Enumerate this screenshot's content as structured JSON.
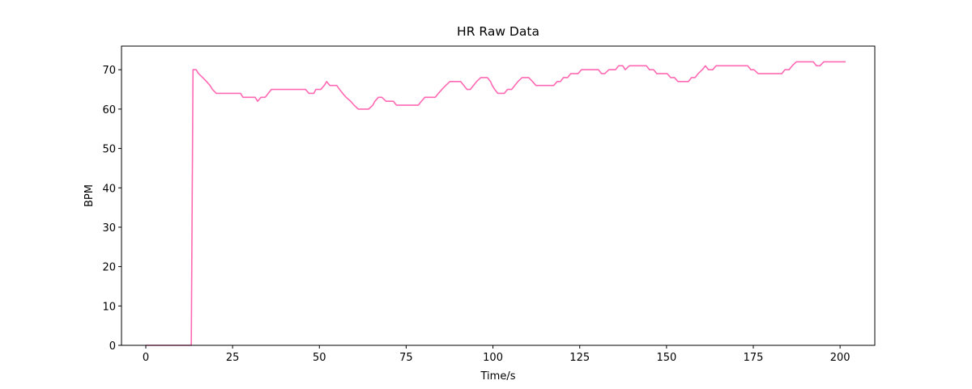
{
  "chart_data": {
    "type": "line",
    "title": "HR Raw Data",
    "x_label": "Time/s",
    "y_label": "BPM",
    "color": "#ff69b4",
    "xlim": [
      -7,
      210
    ],
    "xticks": [
      0,
      25,
      50,
      75,
      100,
      125,
      150,
      175,
      200
    ],
    "ylim": [
      0,
      76
    ],
    "yticks": [
      0,
      10,
      20,
      30,
      40,
      50,
      60,
      70
    ],
    "x": [
      0,
      13.1,
      13.6,
      14.5,
      15.2,
      16.4,
      17.5,
      18.5,
      19.2,
      20.3,
      27.3,
      28,
      31.5,
      32.2,
      33.2,
      34.4,
      35.3,
      36.2,
      46,
      47,
      48.4,
      49,
      50.4,
      51.4,
      52.1,
      53,
      55,
      55.8,
      56.7,
      57.7,
      59,
      60,
      61.2,
      64.2,
      65.4,
      66,
      67,
      68,
      69.2,
      71.3,
      72.2,
      78.5,
      79.4,
      80.4,
      83.4,
      84.3,
      85.3,
      86.4,
      87.6,
      90.7,
      91.6,
      92.5,
      93.5,
      94.4,
      95.3,
      96.5,
      98.4,
      99.3,
      99.8,
      100.5,
      101.4,
      103.3,
      104.2,
      105.4,
      106.3,
      107.2,
      108.4,
      110.3,
      111.4,
      112.4,
      117.5,
      118.5,
      119.4,
      120.3,
      121.5,
      122.4,
      124.5,
      125.5,
      130.4,
      131.3,
      132.2,
      133.4,
      135.3,
      136.2,
      137.4,
      138.1,
      139.3,
      144.2,
      145.1,
      146.3,
      147.2,
      150.2,
      151.2,
      152.3,
      153.3,
      156.3,
      157.2,
      158.2,
      159.1,
      160.3,
      161.2,
      162.1,
      163.3,
      164.3,
      173.4,
      174.3,
      175.2,
      176.4,
      183.2,
      184.1,
      185.3,
      186.2,
      187.4,
      192.3,
      193.2,
      194.2,
      195.3,
      201.6
    ],
    "values": [
      0,
      0,
      70,
      70,
      69,
      68,
      67,
      66,
      65,
      64,
      64,
      63,
      63,
      62,
      63,
      63,
      64,
      65,
      65,
      64,
      64,
      65,
      65,
      66,
      67,
      66,
      66,
      65,
      64,
      63,
      62,
      61,
      60,
      60,
      61,
      62,
      63,
      63,
      62,
      62,
      61,
      61,
      62,
      63,
      63,
      64,
      65,
      66,
      67,
      67,
      66,
      65,
      65,
      66,
      67,
      68,
      68,
      67,
      66,
      65,
      64,
      64,
      65,
      65,
      66,
      67,
      68,
      68,
      67,
      66,
      66,
      67,
      67,
      68,
      68,
      69,
      69,
      70,
      70,
      69,
      69,
      70,
      70,
      71,
      71,
      70,
      71,
      71,
      70,
      70,
      69,
      69,
      68,
      68,
      67,
      67,
      68,
      68,
      69,
      70,
      71,
      70,
      70,
      71,
      71,
      70,
      70,
      69,
      69,
      70,
      70,
      71,
      72,
      72,
      71,
      71,
      72,
      72
    ]
  }
}
